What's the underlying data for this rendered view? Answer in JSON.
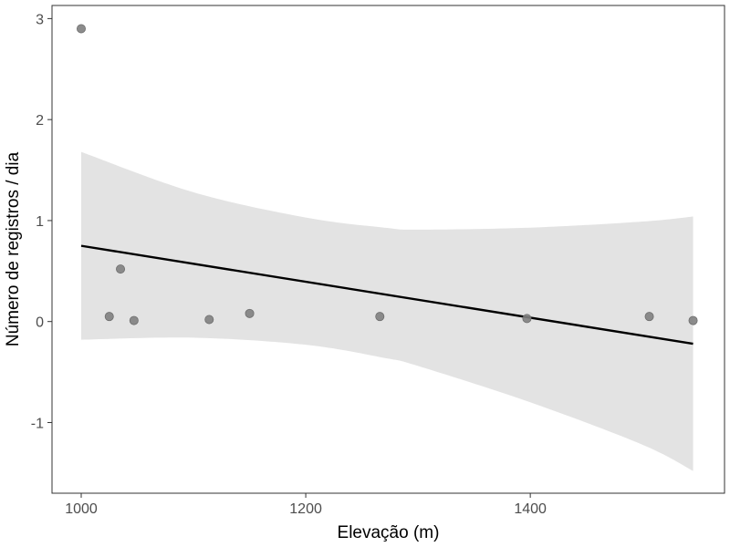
{
  "chart_data": {
    "type": "scatter",
    "title": "",
    "xlabel": "Elevação (m)",
    "ylabel": "Número de registros / dia",
    "xlim": [
      974,
      1573
    ],
    "ylim": [
      -1.7,
      3.13
    ],
    "xticks": [
      1000,
      1200,
      1400
    ],
    "yticks": [
      -1,
      0,
      1,
      2,
      3
    ],
    "grid": false,
    "legend": "none",
    "points": [
      {
        "x": 1000,
        "y": 2.9
      },
      {
        "x": 1025,
        "y": 0.05
      },
      {
        "x": 1035,
        "y": 0.52
      },
      {
        "x": 1047,
        "y": 0.01
      },
      {
        "x": 1114,
        "y": 0.02
      },
      {
        "x": 1150,
        "y": 0.08
      },
      {
        "x": 1266,
        "y": 0.05
      },
      {
        "x": 1397,
        "y": 0.03
      },
      {
        "x": 1506,
        "y": 0.05
      },
      {
        "x": 1545,
        "y": 0.01
      }
    ],
    "fit_line": {
      "x": [
        1000,
        1545
      ],
      "y": [
        0.75,
        -0.22
      ]
    },
    "confidence_band": {
      "x": [
        1000,
        1100,
        1200,
        1270,
        1300,
        1400,
        1500,
        1545
      ],
      "upper": [
        1.68,
        1.28,
        1.03,
        0.93,
        0.91,
        0.93,
        0.99,
        1.04
      ],
      "lower": [
        -0.18,
        -0.16,
        -0.23,
        -0.36,
        -0.44,
        -0.8,
        -1.22,
        -1.48
      ]
    },
    "colors": {
      "point": "#808080",
      "point_stroke": "#6e6e6e",
      "line": "#000000",
      "band": "#e3e3e3",
      "axis_text": "#4d4d4d",
      "panel_border": "#333333"
    }
  }
}
